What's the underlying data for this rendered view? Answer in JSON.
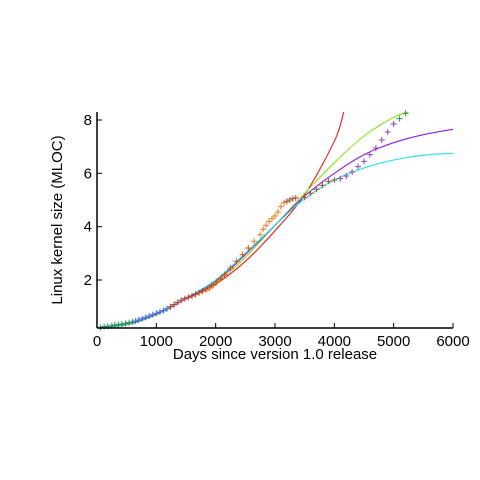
{
  "chart_data": {
    "type": "scatter",
    "title": "",
    "xlabel": "Days since version 1.0 release",
    "ylabel": "Linux kernel size (MLOC)",
    "xlim": [
      0,
      6000
    ],
    "ylim": [
      0.2,
      8.3
    ],
    "xticks": [
      0,
      1000,
      2000,
      3000,
      4000,
      5000,
      6000
    ],
    "yticks": [
      2,
      4,
      6,
      8
    ],
    "grid": false,
    "legend": "none",
    "observed_series": {
      "marker": "cross",
      "points": [
        [
          60,
          0.22
        ],
        [
          120,
          0.25
        ],
        [
          180,
          0.27
        ],
        [
          250,
          0.29
        ],
        [
          300,
          0.31
        ],
        [
          360,
          0.33
        ],
        [
          420,
          0.35
        ],
        [
          480,
          0.37
        ],
        [
          540,
          0.4
        ],
        [
          600,
          0.43
        ],
        [
          650,
          0.46
        ],
        [
          700,
          0.5
        ],
        [
          760,
          0.55
        ],
        [
          820,
          0.6
        ],
        [
          880,
          0.65
        ],
        [
          940,
          0.7
        ],
        [
          1000,
          0.75
        ],
        [
          1060,
          0.8
        ],
        [
          1120,
          0.85
        ],
        [
          1180,
          0.92
        ],
        [
          1240,
          1.0
        ],
        [
          1300,
          1.08
        ],
        [
          1360,
          1.16
        ],
        [
          1420,
          1.24
        ],
        [
          1480,
          1.3
        ],
        [
          1540,
          1.35
        ],
        [
          1600,
          1.4
        ],
        [
          1660,
          1.46
        ],
        [
          1720,
          1.52
        ],
        [
          1780,
          1.58
        ],
        [
          1840,
          1.63
        ],
        [
          1900,
          1.7
        ],
        [
          1960,
          1.8
        ],
        [
          2020,
          1.92
        ],
        [
          2080,
          2.05
        ],
        [
          2150,
          2.2
        ],
        [
          2250,
          2.45
        ],
        [
          2350,
          2.7
        ],
        [
          2450,
          2.95
        ],
        [
          2550,
          3.2
        ],
        [
          2650,
          3.45
        ],
        [
          2750,
          3.7
        ],
        [
          2800,
          3.9
        ],
        [
          2850,
          4.05
        ],
        [
          2900,
          4.2
        ],
        [
          2950,
          4.3
        ],
        [
          3000,
          4.4
        ],
        [
          3050,
          4.55
        ],
        [
          3100,
          4.75
        ],
        [
          3150,
          4.9
        ],
        [
          3200,
          4.95
        ],
        [
          3250,
          5.0
        ],
        [
          3300,
          5.05
        ],
        [
          3350,
          5.08
        ],
        [
          3500,
          5.1
        ],
        [
          3600,
          5.25
        ],
        [
          3700,
          5.4
        ],
        [
          3800,
          5.55
        ],
        [
          3900,
          5.7
        ],
        [
          4000,
          5.75
        ],
        [
          4100,
          5.8
        ],
        [
          4200,
          5.9
        ],
        [
          4300,
          6.05
        ],
        [
          4400,
          6.25
        ],
        [
          4500,
          6.45
        ],
        [
          4600,
          6.7
        ],
        [
          4700,
          6.95
        ],
        [
          4800,
          7.25
        ],
        [
          4900,
          7.55
        ],
        [
          5000,
          7.85
        ],
        [
          5100,
          8.05
        ],
        [
          5200,
          8.25
        ]
      ]
    },
    "fit_series": [
      {
        "color": "#e8191c",
        "points": [
          [
            0,
            0.22
          ],
          [
            500,
            0.32
          ],
          [
            1000,
            0.7
          ],
          [
            1500,
            1.3
          ],
          [
            2000,
            1.85
          ],
          [
            2500,
            2.7
          ],
          [
            3000,
            3.85
          ],
          [
            3500,
            5.2
          ],
          [
            4000,
            7.2
          ],
          [
            4160,
            8.3
          ]
        ]
      },
      {
        "color": "#8be01c",
        "points": [
          [
            0,
            0.22
          ],
          [
            500,
            0.32
          ],
          [
            1000,
            0.7
          ],
          [
            1500,
            1.3
          ],
          [
            2000,
            1.9
          ],
          [
            2500,
            2.85
          ],
          [
            3000,
            4.05
          ],
          [
            3500,
            5.25
          ],
          [
            4000,
            6.4
          ],
          [
            4500,
            7.4
          ],
          [
            5000,
            8.1
          ],
          [
            5250,
            8.3
          ]
        ]
      },
      {
        "color": "#8b1ee0",
        "points": [
          [
            0,
            0.22
          ],
          [
            500,
            0.33
          ],
          [
            1000,
            0.72
          ],
          [
            1500,
            1.3
          ],
          [
            2000,
            1.95
          ],
          [
            2500,
            2.95
          ],
          [
            3000,
            4.05
          ],
          [
            3500,
            5.15
          ],
          [
            4000,
            6.0
          ],
          [
            4500,
            6.7
          ],
          [
            5000,
            7.15
          ],
          [
            5500,
            7.45
          ],
          [
            6000,
            7.65
          ]
        ]
      },
      {
        "color": "#1ee0e0",
        "points": [
          [
            0,
            0.22
          ],
          [
            500,
            0.34
          ],
          [
            1000,
            0.74
          ],
          [
            1500,
            1.32
          ],
          [
            2000,
            2.0
          ],
          [
            2500,
            3.0
          ],
          [
            3000,
            4.05
          ],
          [
            3500,
            5.05
          ],
          [
            4000,
            5.75
          ],
          [
            4500,
            6.2
          ],
          [
            5000,
            6.5
          ],
          [
            5500,
            6.68
          ],
          [
            6000,
            6.75
          ]
        ]
      }
    ],
    "colors": {
      "marker_sequence": [
        "#2e8b57",
        "#4169e1",
        "#c0392b",
        "#d35400",
        "#e67e22",
        "#a0522d",
        "#8e44ad"
      ],
      "axis": "#000000"
    }
  }
}
